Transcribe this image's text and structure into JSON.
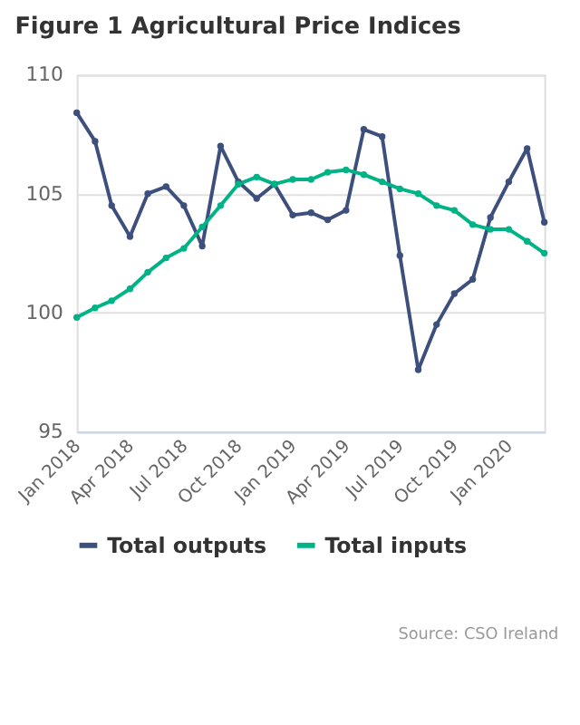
{
  "chart_data": {
    "type": "line",
    "title": "Figure 1 Agricultural Price Indices",
    "annotations": [
      "Source: CSO Ireland"
    ],
    "x": [
      "2018-01",
      "2018-02",
      "2018-03",
      "2018-04",
      "2018-05",
      "2018-06",
      "2018-07",
      "2018-08",
      "2018-09",
      "2018-10",
      "2018-11",
      "2018-12",
      "2019-01",
      "2019-02",
      "2019-03",
      "2019-04",
      "2019-05",
      "2019-06",
      "2019-07",
      "2019-08",
      "2019-09",
      "2019-10",
      "2019-11",
      "2019-12",
      "2020-01",
      "2020-02",
      "2020-03"
    ],
    "series": [
      {
        "name": "Total outputs",
        "color": "#3d4f7c",
        "values": [
          108.4,
          107.2,
          104.5,
          103.2,
          105.0,
          105.3,
          104.5,
          102.8,
          107.0,
          105.5,
          104.8,
          105.4,
          104.1,
          104.2,
          103.9,
          104.3,
          107.7,
          107.4,
          102.4,
          97.6,
          99.5,
          100.8,
          101.4,
          104.0,
          105.5,
          106.9,
          103.8
        ]
      },
      {
        "name": "Total inputs",
        "color": "#00b386",
        "values": [
          99.8,
          100.2,
          100.5,
          101.0,
          101.7,
          102.3,
          102.7,
          103.6,
          104.5,
          105.4,
          105.7,
          105.4,
          105.6,
          105.6,
          105.9,
          106.0,
          105.8,
          105.5,
          105.2,
          105.0,
          104.5,
          104.3,
          103.7,
          103.5,
          103.5,
          103.0,
          102.5
        ]
      }
    ],
    "xlim": [
      "2018-01",
      "2020-03"
    ],
    "xticks": [
      {
        "value": "2018-01",
        "label": "Jan 2018"
      },
      {
        "value": "2018-04",
        "label": "Apr 2018"
      },
      {
        "value": "2018-07",
        "label": "Jul 2018"
      },
      {
        "value": "2018-10",
        "label": "Oct 2018"
      },
      {
        "value": "2019-01",
        "label": "Jan 2019"
      },
      {
        "value": "2019-04",
        "label": "Apr 2019"
      },
      {
        "value": "2019-07",
        "label": "Jul 2019"
      },
      {
        "value": "2019-10",
        "label": "Oct 2019"
      },
      {
        "value": "2020-01",
        "label": "Jan 2020"
      }
    ],
    "ylim": [
      95,
      110
    ],
    "yticks": [
      95,
      100,
      105,
      110
    ],
    "grid": "y",
    "legend": "bottom",
    "marker": "circle",
    "line_style": "solid"
  }
}
